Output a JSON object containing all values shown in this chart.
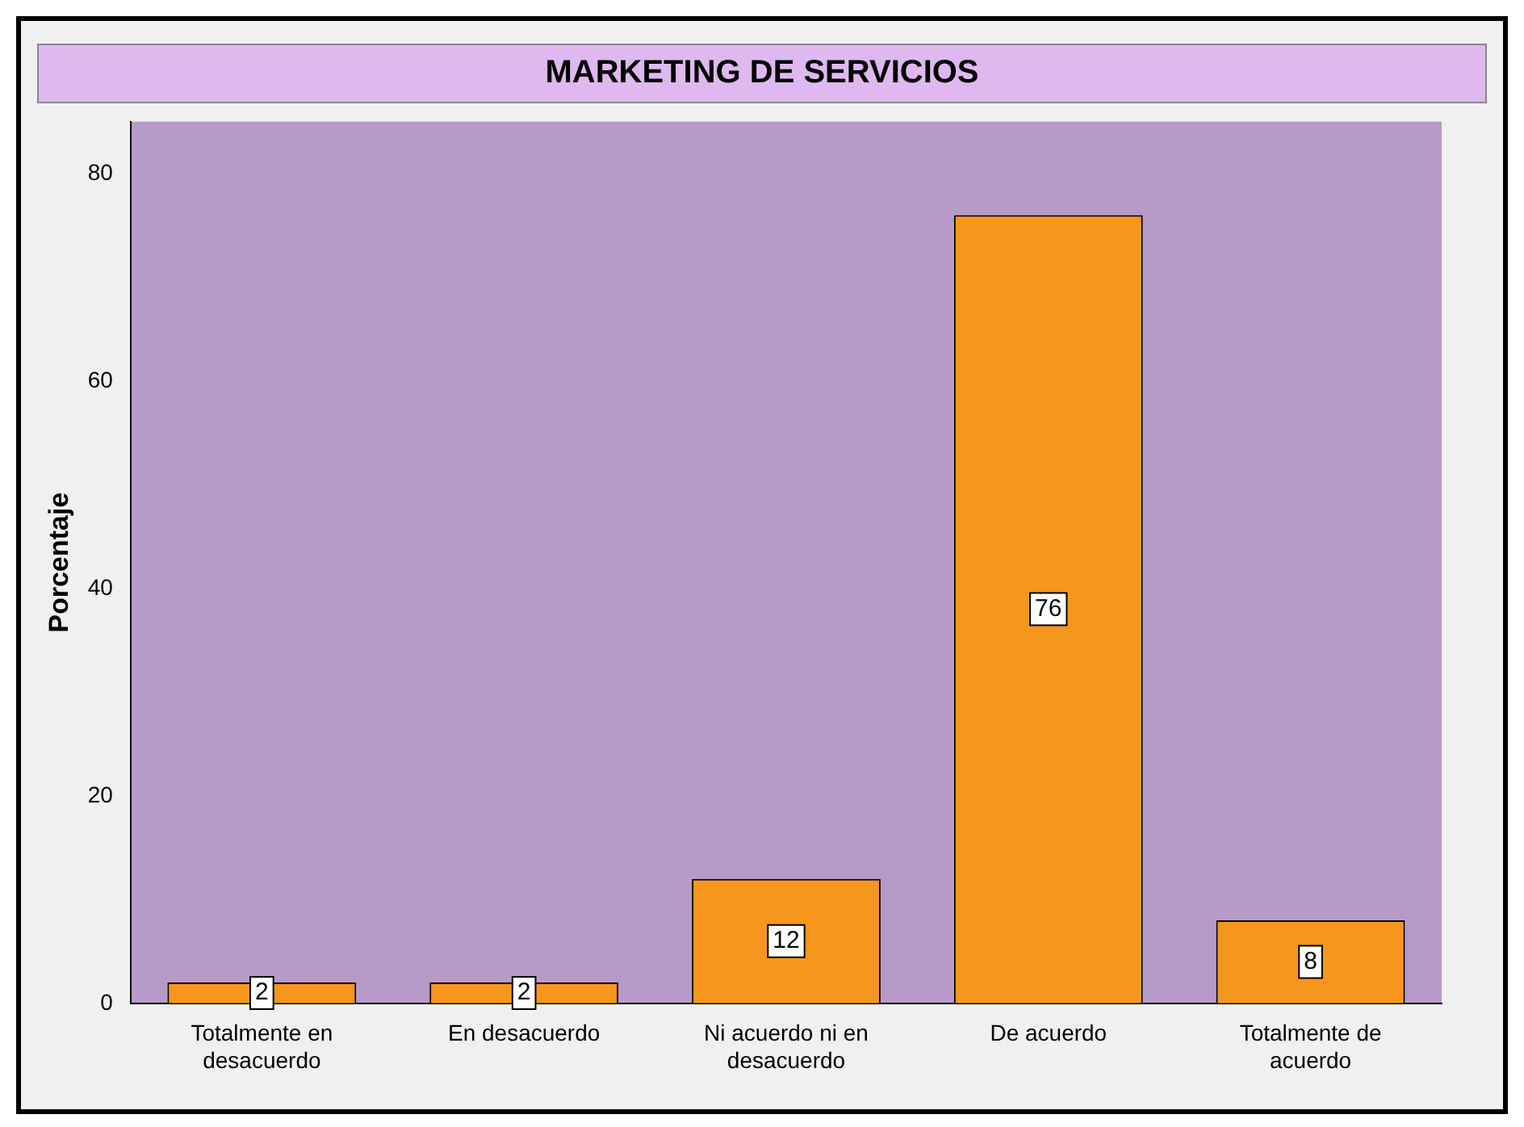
{
  "chart_data": {
    "type": "bar",
    "title": "MARKETING DE SERVICIOS",
    "ylabel": "Porcentaje",
    "categories": [
      "Totalmente en desacuerdo",
      "En desacuerdo",
      "Ni acuerdo ni en desacuerdo",
      "De acuerdo",
      "Totalmente de acuerdo"
    ],
    "values": [
      2,
      2,
      12,
      76,
      8
    ],
    "color": "#f7961d",
    "ylim": [
      0,
      85
    ],
    "yticks": [
      0,
      20,
      40,
      60,
      80
    ],
    "grid": false,
    "legend": false,
    "data_labels": true
  }
}
